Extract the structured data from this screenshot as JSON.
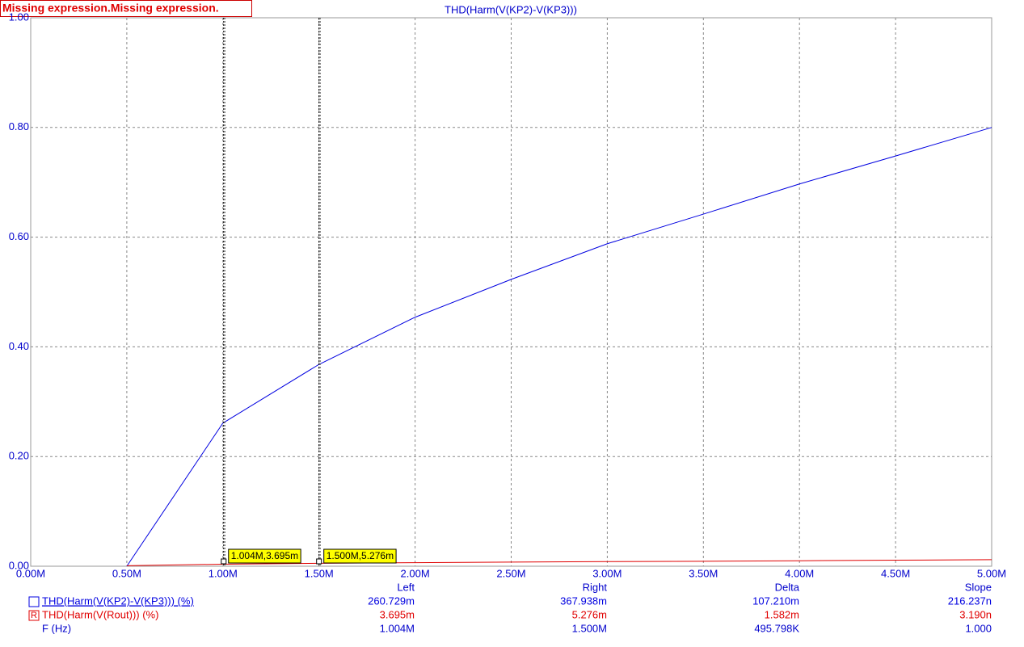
{
  "chart_data": {
    "type": "line",
    "title": "THD(Harm(V(KP2)-V(KP3)))",
    "warning": "Missing expression.Missing expression.",
    "x": [
      0.5,
      1.0,
      1.5,
      2.0,
      2.5,
      3.0,
      3.5,
      4.0,
      4.5,
      5.0
    ],
    "series": [
      {
        "name": "THD(Harm(V(KP2)-V(KP3))) (%)",
        "color": "#0000e0",
        "values": [
          0,
          0.261,
          0.368,
          0.454,
          0.523,
          0.588,
          0.642,
          0.697,
          0.748,
          0.8
        ]
      },
      {
        "name": "THD(Harm(V(Rout))) (%)",
        "marker": "R",
        "color": "#e00000",
        "values": [
          0.001,
          0.0037,
          0.0053,
          0.0065,
          0.0075,
          0.0085,
          0.009,
          0.01,
          0.011,
          0.012
        ]
      }
    ],
    "xlim": [
      0,
      5
    ],
    "xticks": [
      {
        "value": 0,
        "label": "0.00M"
      },
      {
        "value": 0.5,
        "label": "0.50M"
      },
      {
        "value": 1,
        "label": "1.00M"
      },
      {
        "value": 1.5,
        "label": "1.50M"
      },
      {
        "value": 2,
        "label": "2.00M"
      },
      {
        "value": 2.5,
        "label": "2.50M"
      },
      {
        "value": 3,
        "label": "3.00M"
      },
      {
        "value": 3.5,
        "label": "3.50M"
      },
      {
        "value": 4,
        "label": "4.00M"
      },
      {
        "value": 4.5,
        "label": "4.50M"
      },
      {
        "value": 5,
        "label": "5.00M"
      }
    ],
    "ylim": [
      0,
      1
    ],
    "yticks": [
      {
        "value": 0,
        "label": "0.00"
      },
      {
        "value": 0.2,
        "label": "0.20"
      },
      {
        "value": 0.4,
        "label": "0.40"
      },
      {
        "value": 0.6,
        "label": "0.60"
      },
      {
        "value": 0.8,
        "label": "0.80"
      },
      {
        "value": 1,
        "label": "1.00"
      }
    ],
    "grid": true,
    "cursors": [
      {
        "x": 1.004,
        "label": "1.004M,3.695m"
      },
      {
        "x": 1.5,
        "label": "1.500M,5.276m"
      }
    ]
  },
  "cursor_table": {
    "headers": [
      "Left",
      "Right",
      "Delta",
      "Slope"
    ],
    "rows": [
      [
        "260.729m",
        "367.938m",
        "107.210m",
        "216.237n"
      ],
      [
        "3.695m",
        "5.276m",
        "1.582m",
        "3.190n"
      ]
    ],
    "x_row": {
      "name": "F (Hz)",
      "values": [
        "1.004M",
        "1.500M",
        "495.798K",
        "1.000"
      ]
    }
  }
}
